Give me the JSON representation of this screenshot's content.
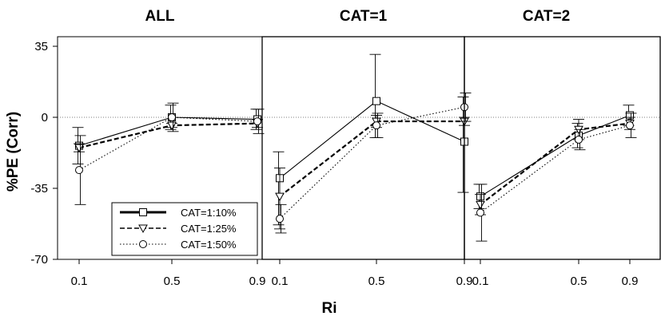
{
  "chart_data": {
    "type": "line",
    "xlabel": "Ri",
    "ylabel": "%PE (Corr)",
    "x_ticks": [
      "0.1",
      "0.5",
      "0.9"
    ],
    "y_ticks": [
      "35",
      "0",
      "-35",
      "-70"
    ],
    "ylim": [
      -70,
      35
    ],
    "reference_line": 0,
    "legend": {
      "position": "bottom-left of first panel",
      "entries": [
        "CAT=1:10%",
        "CAT=1:25%",
        "CAT=1:50%"
      ]
    },
    "panels": [
      {
        "title": "ALL",
        "x": [
          0.1,
          0.5,
          0.9
        ],
        "series": [
          {
            "name": "CAT=1:10%",
            "marker": "square",
            "line": "solid",
            "values": [
              -14,
              0,
              -1
            ],
            "err_low": [
              -23,
              -6,
              -6
            ],
            "err_high": [
              -5,
              6,
              4
            ]
          },
          {
            "name": "CAT=1:25%",
            "marker": "triangle-down",
            "line": "dashed",
            "values": [
              -15,
              -4,
              -3
            ],
            "err_low": [
              -17,
              -5,
              -5
            ],
            "err_high": [
              -13,
              -3,
              -1
            ]
          },
          {
            "name": "CAT=1:50%",
            "marker": "circle",
            "line": "dotted",
            "values": [
              -26,
              0,
              -2
            ],
            "err_low": [
              -43,
              -7,
              -8
            ],
            "err_high": [
              -9,
              7,
              4
            ]
          }
        ]
      },
      {
        "title": "CAT=1",
        "x": [
          0.1,
          0.5,
          0.9
        ],
        "series": [
          {
            "name": "CAT=1:10%",
            "marker": "square",
            "line": "solid",
            "values": [
              -30,
              8,
              -12
            ],
            "err_low": [
              -53,
              -10,
              -37
            ],
            "err_high": [
              -17,
              31,
              10
            ]
          },
          {
            "name": "CAT=1:25%",
            "marker": "triangle-down",
            "line": "dashed",
            "values": [
              -39,
              -2,
              -2
            ],
            "err_low": [
              -55,
              -5,
              -4
            ],
            "err_high": [
              -25,
              1,
              0
            ]
          },
          {
            "name": "CAT=1:50%",
            "marker": "circle",
            "line": "dotted",
            "values": [
              -50,
              -4,
              5
            ],
            "err_low": [
              -57,
              -10,
              -2
            ],
            "err_high": [
              -43,
              2,
              12
            ]
          }
        ]
      },
      {
        "title": "CAT=2",
        "x": [
          0.1,
          0.5,
          0.9
        ],
        "series": [
          {
            "name": "CAT=1:10%",
            "marker": "square",
            "line": "solid",
            "values": [
              -39,
              -9,
              1
            ],
            "err_low": [
              -45,
              -15,
              -4
            ],
            "err_high": [
              -33,
              -3,
              6
            ]
          },
          {
            "name": "CAT=1:25%",
            "marker": "triangle-down",
            "line": "dashed",
            "values": [
              -43,
              -6,
              -3
            ],
            "err_low": [
              -48,
              -11,
              -6
            ],
            "err_high": [
              -38,
              -1,
              0
            ]
          },
          {
            "name": "CAT=1:50%",
            "marker": "circle",
            "line": "dotted",
            "values": [
              -47,
              -11,
              -4
            ],
            "err_low": [
              -61,
              -16,
              -10
            ],
            "err_high": [
              -33,
              -6,
              2
            ]
          }
        ]
      }
    ]
  }
}
